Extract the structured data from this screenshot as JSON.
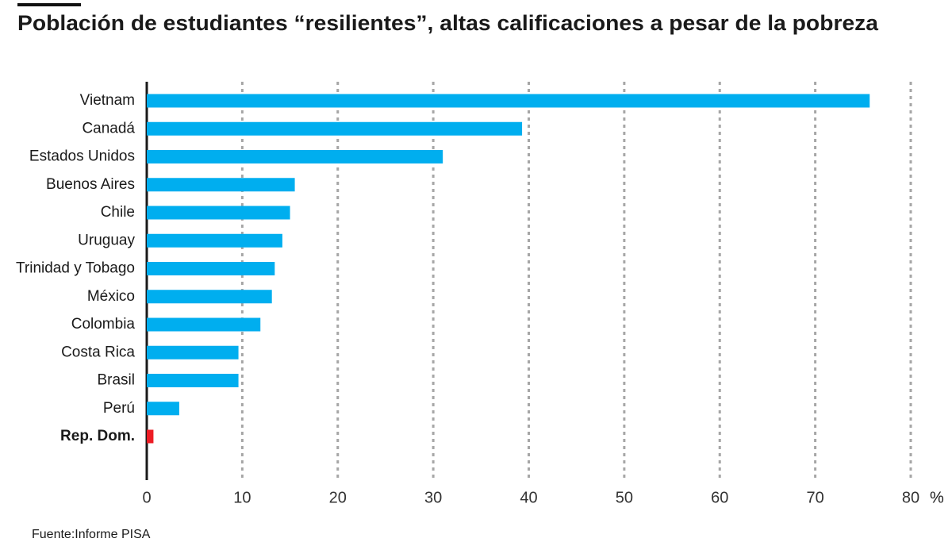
{
  "chart_data": {
    "type": "barh",
    "title": "Población de estudiantes “resilientes”, altas calificaciones a pesar de la pobreza",
    "categories": [
      "Vietnam",
      "Canadá",
      "Estados Unidos",
      "Buenos Aires",
      "Chile",
      "Uruguay",
      "Trinidad y Tobago",
      "México",
      "Colombia",
      "Costa Rica",
      "Brasil",
      "Perú",
      "Rep. Dom."
    ],
    "values": [
      75.7,
      39.3,
      31.0,
      15.5,
      15.0,
      14.2,
      13.4,
      13.1,
      11.9,
      9.6,
      9.6,
      3.4,
      0.7
    ],
    "colors": [
      "#00aeef",
      "#00aeef",
      "#00aeef",
      "#00aeef",
      "#00aeef",
      "#00aeef",
      "#00aeef",
      "#00aeef",
      "#00aeef",
      "#00aeef",
      "#00aeef",
      "#00aeef",
      "#ed1c24"
    ],
    "xlim": [
      0,
      80
    ],
    "xticks": [
      0,
      10,
      20,
      30,
      40,
      50,
      60,
      70,
      80
    ],
    "x_unit": "%",
    "grid": true,
    "source": "Fuente:Informe PISA"
  }
}
